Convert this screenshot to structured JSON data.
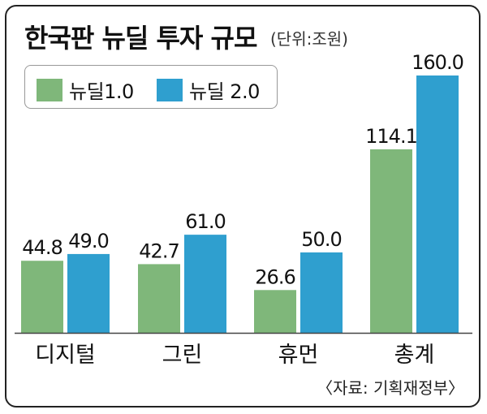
{
  "title": "한국판 뉴딜 투자 규모",
  "unit": "(단위:조원)",
  "source": "〈자료: 기획재정부〉",
  "colors": {
    "series1": "#7fb77a",
    "series2": "#2f9fcf",
    "axis": "#444444"
  },
  "chart_data": {
    "type": "bar",
    "title": "한국판 뉴딜 투자 규모",
    "categories": [
      "디지털",
      "그린",
      "휴먼",
      "총계"
    ],
    "series": [
      {
        "name": "뉴딜1.0",
        "values": [
          44.8,
          42.7,
          26.6,
          114.1
        ],
        "labels": [
          "44.8",
          "42.7",
          "26.6",
          "114.1"
        ]
      },
      {
        "name": "뉴딜 2.0",
        "values": [
          49.0,
          61.0,
          50.0,
          160.0
        ],
        "labels": [
          "49.0",
          "61.0",
          "50.0",
          "160.0"
        ]
      }
    ],
    "ylim": [
      0,
      160
    ],
    "legend": "top-left",
    "grid": false
  }
}
